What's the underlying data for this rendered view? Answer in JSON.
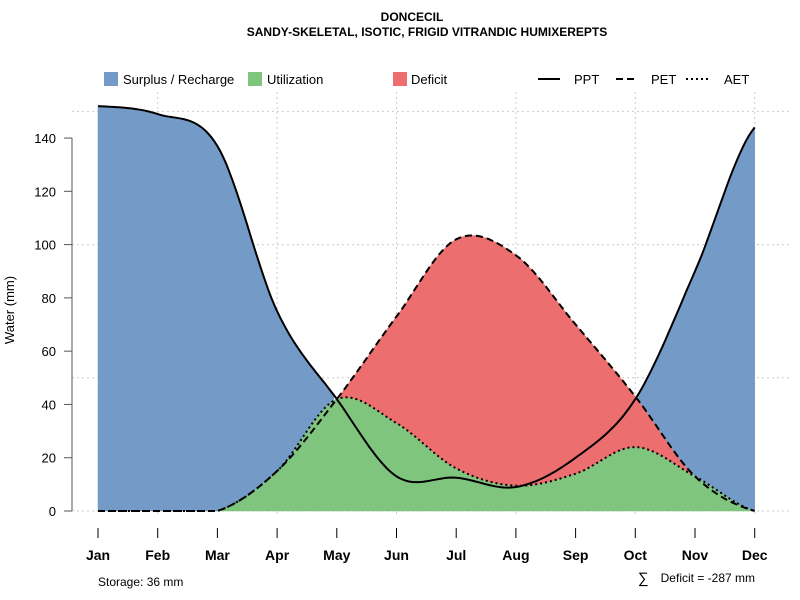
{
  "chart_data": {
    "type": "area",
    "title": "DONCECIL",
    "subtitle": "SANDY-SKELETAL, ISOTIC, FRIGID VITRANDIC HUMIXEREPTS",
    "xlabel": "",
    "ylabel": "Water (mm)",
    "ylim": [
      0,
      155
    ],
    "yticks": [
      0,
      20,
      40,
      60,
      80,
      100,
      120,
      140
    ],
    "grid": true,
    "categories": [
      "Jan",
      "Feb",
      "Mar",
      "Apr",
      "May",
      "Jun",
      "Jul",
      "Aug",
      "Sep",
      "Oct",
      "Nov",
      "Dec"
    ],
    "series": [
      {
        "name": "PPT",
        "style": "solid",
        "values": [
          152,
          149,
          137,
          75,
          42,
          13,
          12.5,
          9,
          20,
          42,
          90,
          144
        ]
      },
      {
        "name": "PET",
        "style": "dashed",
        "values": [
          0,
          0,
          0,
          15,
          42,
          73,
          102,
          96,
          70,
          43,
          13,
          0
        ]
      },
      {
        "name": "AET",
        "style": "dotted",
        "values": [
          0,
          0,
          0,
          15,
          42,
          33,
          16,
          9.5,
          14,
          24,
          13,
          0
        ]
      }
    ],
    "legend": {
      "position": "top",
      "fills": [
        {
          "label": "Surplus / Recharge",
          "color": "#749BC7"
        },
        {
          "label": "Utilization",
          "color": "#7FC57D"
        },
        {
          "label": "Deficit",
          "color": "#EC6E6E"
        }
      ],
      "lines": [
        "PPT",
        "PET",
        "AET"
      ]
    },
    "annotations": {
      "storage": "Storage: 36 mm",
      "deficit_symbol": "∑",
      "deficit": "Deficit = -287 mm"
    }
  }
}
